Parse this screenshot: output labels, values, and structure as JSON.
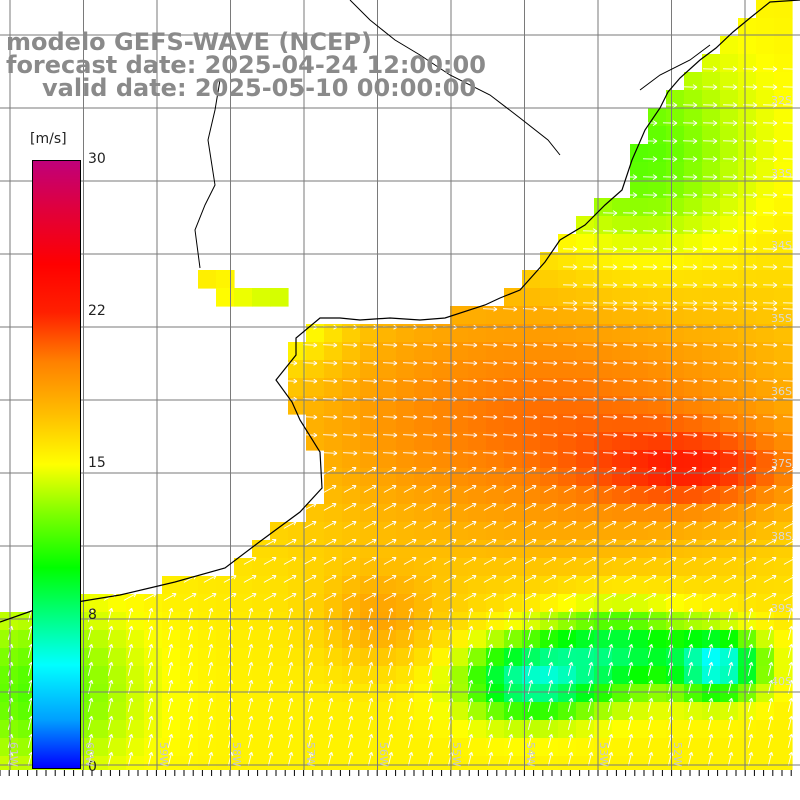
{
  "title": {
    "line1": "modelo GEFS-WAVE (NCEP)",
    "line2": "forecast date: 2025-04-24 12:00:00",
    "line3": "valid date: 2025-05-10 00:00:00"
  },
  "colorbar": {
    "unit": "[m/s]",
    "ticks": [
      "30",
      "22",
      "15",
      "8",
      "0"
    ],
    "colors": [
      "#0000ff",
      "#00a0ff",
      "#00ffff",
      "#00ff80",
      "#00ff00",
      "#80ff00",
      "#ffff00",
      "#ffc000",
      "#ff8000",
      "#ff2000",
      "#ff0000",
      "#e0003c",
      "#c0007a"
    ]
  },
  "lat_labels": [
    "32S",
    "33S",
    "34S",
    "35S",
    "36S",
    "37S",
    "38S",
    "39S",
    "40S"
  ],
  "lon_labels": [
    "61W",
    "60W",
    "59W",
    "58W",
    "57W",
    "56W",
    "55W",
    "54W",
    "53W",
    "52W"
  ],
  "style": {
    "land": "#ffffff",
    "grid": "#7a7a7a",
    "coast": "#000000",
    "arrow": "#ffffff"
  }
}
